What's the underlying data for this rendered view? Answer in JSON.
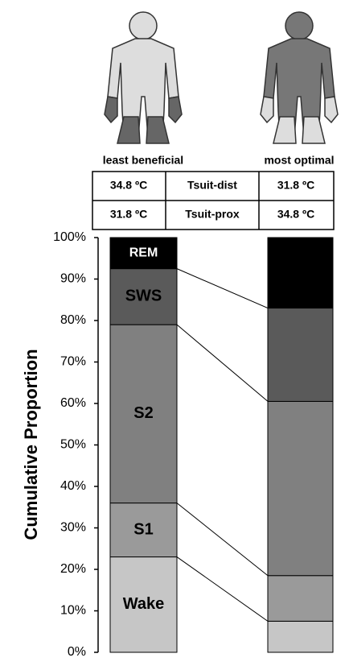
{
  "chart_data": {
    "type": "stacked-bar",
    "categories": [
      "least beneficial",
      "most optimal"
    ],
    "series": [
      {
        "name": "Wake",
        "color": "#c6c6c6",
        "label_color": "#000000",
        "values": [
          23,
          7.5
        ]
      },
      {
        "name": "S1",
        "color": "#9a9a9a",
        "label_color": "#000000",
        "values": [
          13,
          11
        ]
      },
      {
        "name": "S2",
        "color": "#808080",
        "label_color": "#000000",
        "values": [
          43,
          42
        ]
      },
      {
        "name": "SWS",
        "color": "#5a5a5a",
        "label_color": "#000000",
        "values": [
          13.5,
          22.5
        ]
      },
      {
        "name": "REM",
        "color": "#000000",
        "label_color": "#ffffff",
        "values": [
          7.5,
          17
        ]
      }
    ],
    "ylabel": "Cumulative Proportion",
    "ylim": [
      0,
      100
    ],
    "yticks": [
      {
        "value": 0,
        "label": "0%"
      },
      {
        "value": 10,
        "label": "10%"
      },
      {
        "value": 20,
        "label": "20%"
      },
      {
        "value": 30,
        "label": "30%"
      },
      {
        "value": 40,
        "label": "40%"
      },
      {
        "value": 50,
        "label": "50%"
      },
      {
        "value": 60,
        "label": "60%"
      },
      {
        "value": 70,
        "label": "70%"
      },
      {
        "value": 80,
        "label": "80%"
      },
      {
        "value": 90,
        "label": "90%"
      },
      {
        "value": 100,
        "label": "100%"
      }
    ],
    "table": [
      [
        "34.8 ºC",
        "Tsuit-dist",
        "31.8 ºC"
      ],
      [
        "31.8 ºC",
        "Tsuit-prox",
        "34.8 ºC"
      ]
    ]
  }
}
